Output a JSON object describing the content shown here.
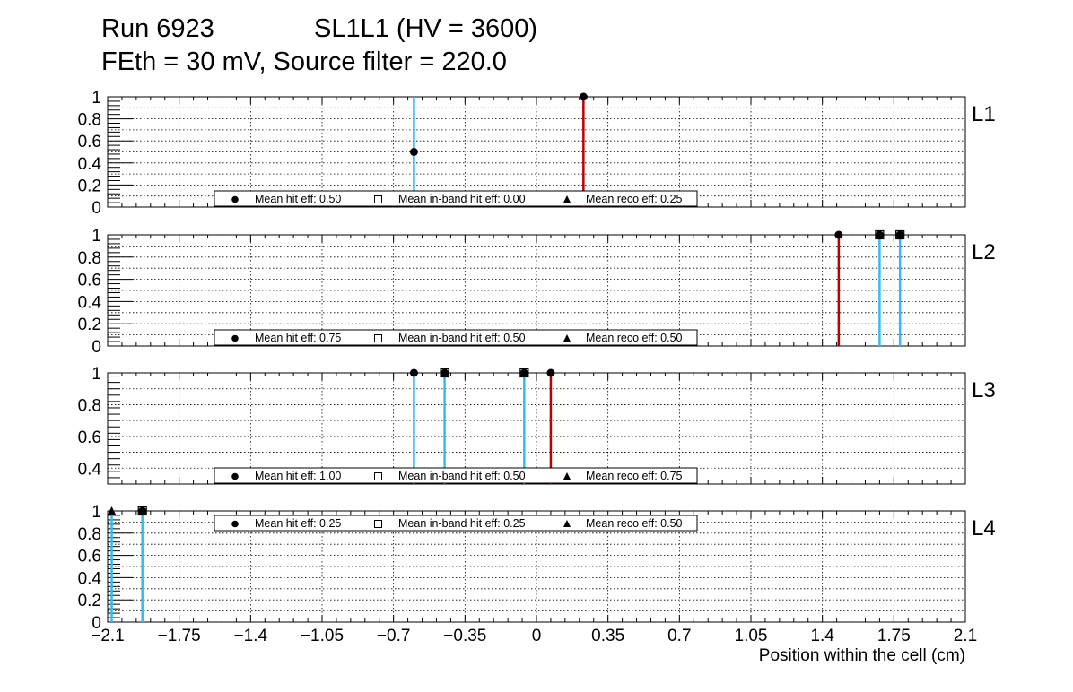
{
  "header": {
    "run": "Run 6923",
    "chamber": "SL1L1 (HV = 3600)",
    "settings": "FEth = 30 mV, Source filter = 220.0"
  },
  "colors": {
    "cyan": "#33bbee",
    "red": "#bb0000",
    "grid": "#000000"
  },
  "chart_data": {
    "type": "scatter",
    "xlabel": "Position within the cell (cm)",
    "xlim": [
      -2.1,
      2.1
    ],
    "xticks": [
      "−2.1",
      "−1.75",
      "−1.4",
      "−1.05",
      "−0.7",
      "−0.35",
      "0",
      "0.35",
      "0.7",
      "1.05",
      "1.4",
      "1.75",
      "2.1"
    ],
    "xtick_values": [
      -2.1,
      -1.75,
      -1.4,
      -1.05,
      -0.7,
      -0.35,
      0,
      0.35,
      0.7,
      1.05,
      1.4,
      1.75,
      2.1
    ],
    "grid": true,
    "legend_labels": {
      "hit": "Mean hit  eff:",
      "inband": "Mean in-band hit eff:",
      "reco": "Mean reco eff:"
    },
    "panels": [
      {
        "label": "L1",
        "ylim": [
          0,
          1
        ],
        "yticks": [
          "0",
          "0.2",
          "0.4",
          "0.6",
          "0.8",
          "1"
        ],
        "ytick_values": [
          0,
          0.2,
          0.4,
          0.6,
          0.8,
          1
        ],
        "legend": {
          "position": "bottom",
          "hit": "0.50",
          "inband": "0.00",
          "reco": "0.25"
        },
        "lines": [
          {
            "x": -0.6,
            "color": "cyan"
          },
          {
            "x": 0.23,
            "color": "red"
          }
        ],
        "points": [
          {
            "x": -0.6,
            "y": 0.5,
            "marker": "circle"
          },
          {
            "x": 0.23,
            "y": 1.0,
            "marker": "circle"
          }
        ]
      },
      {
        "label": "L2",
        "ylim": [
          0,
          1
        ],
        "yticks": [
          "0",
          "0.2",
          "0.4",
          "0.6",
          "0.8",
          "1"
        ],
        "ytick_values": [
          0,
          0.2,
          0.4,
          0.6,
          0.8,
          1
        ],
        "legend": {
          "position": "bottom",
          "hit": "0.75",
          "inband": "0.50",
          "reco": "0.50"
        },
        "lines": [
          {
            "x": 1.48,
            "color": "red"
          },
          {
            "x": 1.68,
            "color": "cyan"
          },
          {
            "x": 1.78,
            "color": "cyan"
          }
        ],
        "points": [
          {
            "x": 1.48,
            "y": 1.0,
            "marker": "circle"
          },
          {
            "x": 1.68,
            "y": 1.0,
            "marker": "all"
          },
          {
            "x": 1.78,
            "y": 1.0,
            "marker": "all"
          }
        ]
      },
      {
        "label": "L3",
        "ylim": [
          0.3,
          1
        ],
        "yticks": [
          "0.4",
          "0.6",
          "0.8",
          "1"
        ],
        "ytick_values": [
          0.4,
          0.6,
          0.8,
          1
        ],
        "legend": {
          "position": "bottom",
          "hit": "1.00",
          "inband": "0.50",
          "reco": "0.75"
        },
        "lines": [
          {
            "x": -0.6,
            "color": "cyan"
          },
          {
            "x": -0.45,
            "color": "cyan"
          },
          {
            "x": -0.06,
            "color": "cyan"
          },
          {
            "x": 0.07,
            "color": "red"
          }
        ],
        "points": [
          {
            "x": -0.6,
            "y": 1.0,
            "marker": "circle"
          },
          {
            "x": -0.45,
            "y": 1.0,
            "marker": "all"
          },
          {
            "x": -0.06,
            "y": 1.0,
            "marker": "all"
          },
          {
            "x": 0.07,
            "y": 1.0,
            "marker": "circle"
          }
        ]
      },
      {
        "label": "L4",
        "ylim": [
          0,
          1
        ],
        "yticks": [
          "0",
          "0.2",
          "0.4",
          "0.6",
          "0.8",
          "1"
        ],
        "ytick_values": [
          0,
          0.2,
          0.4,
          0.6,
          0.8,
          1
        ],
        "legend": {
          "position": "top",
          "hit": "0.25",
          "inband": "0.25",
          "reco": "0.50"
        },
        "lines": [
          {
            "x": -2.08,
            "color": "cyan"
          },
          {
            "x": -1.93,
            "color": "cyan"
          }
        ],
        "points": [
          {
            "x": -2.08,
            "y": 1.0,
            "marker": "triangle"
          },
          {
            "x": -1.93,
            "y": 1.0,
            "marker": "all"
          }
        ]
      }
    ]
  }
}
